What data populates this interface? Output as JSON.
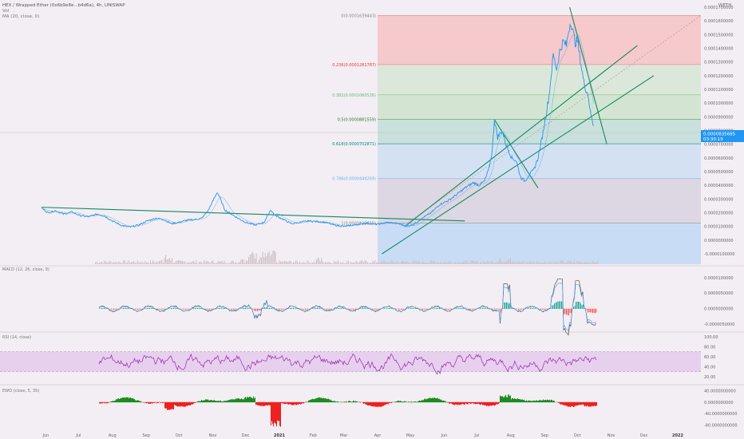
{
  "header": {
    "title": "HEX / Wrapped Ether (0x6b9e8e...b4d6a), 4h, UNISWAP",
    "sub1": "Vol",
    "sub2": "MA (20, close, 0)",
    "currency": "WETH"
  },
  "colors": {
    "bg": "#f3eef3",
    "price": "#2196f3",
    "trend": "#0f8a5f",
    "macd": "#ff5a5a",
    "rsi": "#9c27b0",
    "rsi_band": "#e6d0ee",
    "ewo_pos": "#1c8c20",
    "ewo_neg": "#ee2020",
    "axis_text": "#666666"
  },
  "price_label": {
    "value": "0.0000835685",
    "time": "03:30:19"
  },
  "chart_data": {
    "type": "line",
    "title": "HEX / Wrapped Ether (0x6b9e8e...b4d6a), 4h, UNISWAP",
    "x_ticks": [
      "Jun",
      "Jul",
      "Aug",
      "Sep",
      "Oct",
      "Nov",
      "Dec",
      "2021",
      "Feb",
      "Mar",
      "Apr",
      "May",
      "Jun",
      "Jul",
      "Aug",
      "Sep",
      "Oct",
      "Nov",
      "Dec",
      "2022"
    ],
    "y_ticks": [
      "0.0001700000",
      "0.0001600000",
      "0.0001500000",
      "0.0001400000",
      "0.0001300000",
      "0.0001200000",
      "0.0001100000",
      "0.0001000000",
      "0.0000900000",
      "0.0000800000",
      "0.0000700000",
      "0.0000600000",
      "0.0000500000",
      "0.0000400000",
      "0.0000300000",
      "0.0000200000",
      "0.0000100000",
      "0.0000000000",
      "-0.0000100000"
    ],
    "ylim": [
      -1e-05,
      0.00017
    ],
    "series": [
      {
        "values": [
          [
            "2020-05-28",
            2.35e-05
          ],
          [
            "2020-06-03",
            2e-05
          ],
          [
            "2020-06-10",
            2.15e-05
          ],
          [
            "2020-06-17",
            1.9e-05
          ],
          [
            "2020-06-25",
            2.05e-05
          ],
          [
            "2020-07-02",
            1.8e-05
          ],
          [
            "2020-07-10",
            1.7e-05
          ],
          [
            "2020-07-18",
            1.9e-05
          ],
          [
            "2020-07-25",
            1.75e-05
          ],
          [
            "2020-08-01",
            1.4e-05
          ],
          [
            "2020-08-10",
            1.05e-05
          ],
          [
            "2020-08-17",
            9.5e-06
          ],
          [
            "2020-08-25",
            1.1e-05
          ],
          [
            "2020-09-02",
            1.4e-05
          ],
          [
            "2020-09-10",
            1.6e-05
          ],
          [
            "2020-09-17",
            1.5e-05
          ],
          [
            "2020-09-24",
            1.2e-05
          ],
          [
            "2020-10-01",
            1.3e-05
          ],
          [
            "2020-10-08",
            1.45e-05
          ],
          [
            "2020-10-15",
            1.5e-05
          ],
          [
            "2020-10-22",
            1.6e-05
          ],
          [
            "2020-10-28",
            2.2e-05
          ],
          [
            "2020-11-02",
            3e-05
          ],
          [
            "2020-11-05",
            3.5e-05
          ],
          [
            "2020-11-08",
            3e-05
          ],
          [
            "2020-11-12",
            2.2e-05
          ],
          [
            "2020-11-18",
            1.9e-05
          ],
          [
            "2020-11-24",
            1.6e-05
          ],
          [
            "2020-12-01",
            1.3e-05
          ],
          [
            "2020-12-10",
            1.1e-05
          ],
          [
            "2020-12-18",
            1.3e-05
          ],
          [
            "2020-12-24",
            2.2e-05
          ],
          [
            "2020-12-28",
            1.8e-05
          ],
          [
            "2021-01-05",
            1.5e-05
          ],
          [
            "2021-01-12",
            1.2e-05
          ],
          [
            "2021-01-20",
            1.3e-05
          ],
          [
            "2021-01-28",
            1.4e-05
          ],
          [
            "2021-02-05",
            1.35e-05
          ],
          [
            "2021-02-12",
            1.3e-05
          ],
          [
            "2021-02-20",
            1.1e-05
          ],
          [
            "2021-03-01",
            1e-05
          ],
          [
            "2021-03-10",
            1.1e-05
          ],
          [
            "2021-03-20",
            1.25e-05
          ],
          [
            "2021-04-01",
            1.15e-05
          ],
          [
            "2021-04-10",
            1.3e-05
          ],
          [
            "2021-04-20",
            1.2e-05
          ],
          [
            "2021-04-28",
            1e-05
          ],
          [
            "2021-05-05",
            1.2e-05
          ],
          [
            "2021-05-12",
            1.6e-05
          ],
          [
            "2021-05-20",
            2e-05
          ],
          [
            "2021-05-28",
            2.6e-05
          ],
          [
            "2021-06-05",
            2.9e-05
          ],
          [
            "2021-06-12",
            3.3e-05
          ],
          [
            "2021-06-20",
            3.8e-05
          ],
          [
            "2021-06-28",
            4.2e-05
          ],
          [
            "2021-07-03",
            4e-05
          ],
          [
            "2021-07-08",
            4.3e-05
          ],
          [
            "2021-07-12",
            5.2e-05
          ],
          [
            "2021-07-15",
            6.5e-05
          ],
          [
            "2021-07-17",
            8.8e-05
          ],
          [
            "2021-07-20",
            7.5e-05
          ],
          [
            "2021-07-24",
            8e-05
          ],
          [
            "2021-07-28",
            6.9e-05
          ],
          [
            "2021-08-02",
            6e-05
          ],
          [
            "2021-08-06",
            5.8e-05
          ],
          [
            "2021-08-10",
            4.6e-05
          ],
          [
            "2021-08-14",
            4.3e-05
          ],
          [
            "2021-08-18",
            4.8e-05
          ],
          [
            "2021-08-22",
            5.1e-05
          ],
          [
            "2021-08-26",
            6e-05
          ],
          [
            "2021-08-30",
            7.6e-05
          ],
          [
            "2021-09-02",
            9e-05
          ],
          [
            "2021-09-05",
            0.000105
          ],
          [
            "2021-09-07",
            0.00012
          ],
          [
            "2021-09-09",
            0.000135
          ],
          [
            "2021-09-12",
            0.000125
          ],
          [
            "2021-09-15",
            0.000138
          ],
          [
            "2021-09-18",
            0.000145
          ],
          [
            "2021-09-21",
            0.000142
          ],
          [
            "2021-09-23",
            0.000153
          ],
          [
            "2021-09-25",
            0.00016
          ],
          [
            "2021-09-27",
            0.000152
          ],
          [
            "2021-09-29",
            0.000144
          ],
          [
            "2021-10-01",
            0.000146
          ],
          [
            "2021-10-03",
            0.000135
          ],
          [
            "2021-10-05",
            0.000125
          ],
          [
            "2021-10-07",
            0.000115
          ],
          [
            "2021-10-09",
            0.00011
          ],
          [
            "2021-10-11",
            0.000106
          ],
          [
            "2021-10-13",
            9.3e-05
          ],
          [
            "2021-10-15",
            8.6e-05
          ],
          [
            "2021-10-16",
            8.36e-05
          ]
        ]
      }
    ],
    "fib_levels": [
      {
        "ratio": "0",
        "label": "0(0.0001639443)",
        "value": 0.0001639443
      },
      {
        "ratio": "0.236",
        "label": "0.236(0.0001281787)",
        "value": 0.0001281787
      },
      {
        "ratio": "0.382",
        "label": "0.382(0.0001060526)",
        "value": 0.0001060526
      },
      {
        "ratio": "0.5",
        "label": "0.5(0.0000881559)",
        "value": 8.81559e-05
      },
      {
        "ratio": "0.618",
        "label": "0.618(0.0000702871)",
        "value": 7.02871e-05
      },
      {
        "ratio": "0.786",
        "label": "0.786(0.0000449269)",
        "value": 4.49269e-05
      },
      {
        "ratio": "1",
        "label": "1(0.0000123655)",
        "value": 1.23655e-05
      }
    ],
    "indicators": {
      "macd": {
        "label": "MACD (12, 26, close, 9)",
        "y_ticks": [
          "0.0000100000",
          "0.0000050000",
          "0.0000000000",
          "-0.0000050000"
        ],
        "ylim": [
          -6.5e-06,
          1.2e-05
        ]
      },
      "rsi": {
        "label": "RSI (14, close)",
        "y_ticks": [
          "100.00",
          "80.00",
          "60.00",
          "40.00",
          "20.00"
        ],
        "ylim": [
          10,
          105
        ],
        "band": [
          30,
          70
        ]
      },
      "ewo": {
        "label": "EWO (close, 5, 35)",
        "y_ticks": [
          "40.0000000000",
          "0.0000000000",
          "-40.0000000000",
          "-80.0000000000"
        ],
        "ylim": [
          -95,
          55
        ]
      }
    }
  }
}
